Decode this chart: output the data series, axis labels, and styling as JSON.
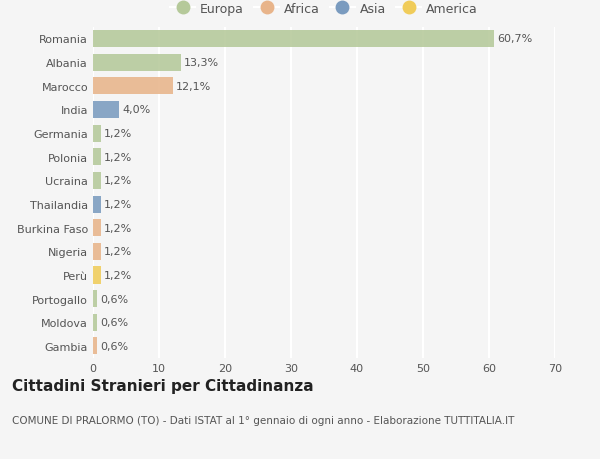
{
  "countries": [
    "Romania",
    "Albania",
    "Marocco",
    "India",
    "Germania",
    "Polonia",
    "Ucraina",
    "Thailandia",
    "Burkina Faso",
    "Nigeria",
    "Perù",
    "Portogallo",
    "Moldova",
    "Gambia"
  ],
  "values": [
    60.7,
    13.3,
    12.1,
    4.0,
    1.2,
    1.2,
    1.2,
    1.2,
    1.2,
    1.2,
    1.2,
    0.6,
    0.6,
    0.6
  ],
  "labels": [
    "60,7%",
    "13,3%",
    "12,1%",
    "4,0%",
    "1,2%",
    "1,2%",
    "1,2%",
    "1,2%",
    "1,2%",
    "1,2%",
    "1,2%",
    "0,6%",
    "0,6%",
    "0,6%"
  ],
  "continents": [
    "Europa",
    "Europa",
    "Africa",
    "Asia",
    "Europa",
    "Europa",
    "Europa",
    "Asia",
    "Africa",
    "Africa",
    "America",
    "Europa",
    "Europa",
    "Africa"
  ],
  "continent_colors": {
    "Europa": "#b5c99a",
    "Africa": "#e8b48a",
    "Asia": "#7a9bbf",
    "America": "#f0cc5a"
  },
  "legend_order": [
    "Europa",
    "Africa",
    "Asia",
    "America"
  ],
  "title": "Cittadini Stranieri per Cittadinanza",
  "subtitle": "COMUNE DI PRALORMO (TO) - Dati ISTAT al 1° gennaio di ogni anno - Elaborazione TUTTITALIA.IT",
  "xlim": [
    0,
    70
  ],
  "xticks": [
    0,
    10,
    20,
    30,
    40,
    50,
    60,
    70
  ],
  "background_color": "#f5f5f5",
  "grid_color": "#ffffff",
  "bar_height": 0.72,
  "title_fontsize": 11,
  "subtitle_fontsize": 7.5,
  "tick_fontsize": 8,
  "label_fontsize": 8
}
